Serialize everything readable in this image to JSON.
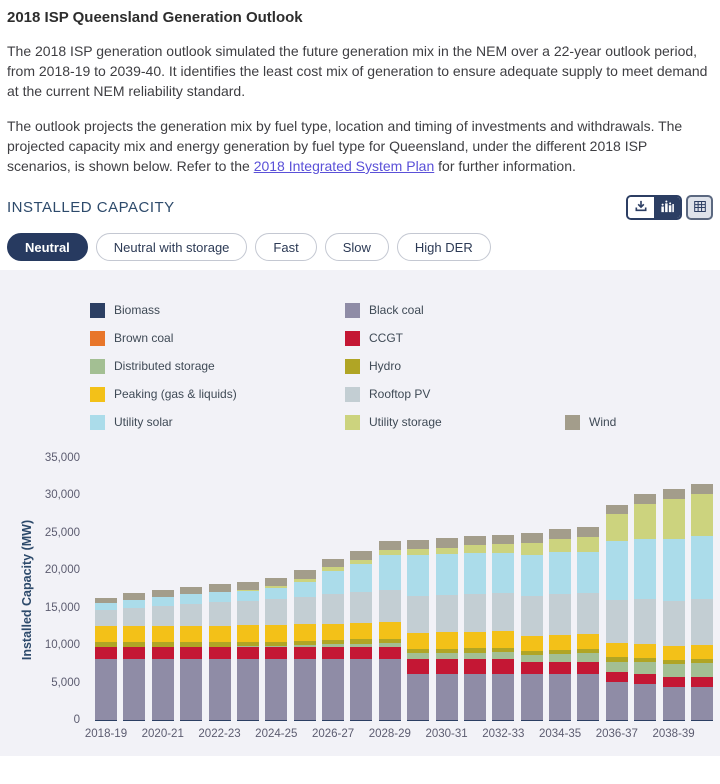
{
  "page": {
    "title": "2018 ISP Queensland Generation Outlook",
    "paragraph1": "The 2018 ISP generation outlook simulated the future generation mix in the NEM over a 22-year outlook period, from 2018-19 to 2039-40. It identifies the least cost mix of generation to ensure adequate supply to meet demand at the current NEM reliability standard.",
    "paragraph2_before_link": "The outlook projects the generation mix by fuel type, location and timing of investments and withdrawals. The projected capacity mix and energy generation by fuel type for Queensland, under the different 2018 ISP scenarios, is shown below. Refer to the ",
    "link_text": "2018 Integrated System Plan",
    "paragraph2_after_link": " for further information."
  },
  "section": {
    "header": "INSTALLED CAPACITY"
  },
  "toolbar": [
    {
      "name": "download",
      "icon": "download-icon",
      "selected": false
    },
    {
      "name": "chart-view",
      "icon": "bar-chart-icon",
      "selected": true
    },
    {
      "name": "table-view",
      "icon": "table-icon",
      "selected": false
    }
  ],
  "tabs": [
    {
      "label": "Neutral",
      "selected": true
    },
    {
      "label": "Neutral with storage",
      "selected": false
    },
    {
      "label": "Fast",
      "selected": false
    },
    {
      "label": "Slow",
      "selected": false
    },
    {
      "label": "High DER",
      "selected": false
    }
  ],
  "colors": {
    "accent_navy": "#273a60",
    "panel_background": "#f2f2f7",
    "link": "#5a50d8",
    "axis_text": "#5c5c70",
    "legend_text": "#3f4a56"
  },
  "chart_data": {
    "type": "bar",
    "stacked": true,
    "title": "",
    "xlabel": "",
    "ylabel": "Installed Capacity (MW)",
    "ylim": [
      0,
      35000
    ],
    "grid": false,
    "legend_position": "top",
    "yticks": [
      {
        "value": 0,
        "label": "0"
      },
      {
        "value": 5000,
        "label": "5,000"
      },
      {
        "value": 10000,
        "label": "10,000"
      },
      {
        "value": 15000,
        "label": "15,000"
      },
      {
        "value": 20000,
        "label": "20,000"
      },
      {
        "value": 25000,
        "label": "25,000"
      },
      {
        "value": 30000,
        "label": "30,000"
      },
      {
        "value": 35000,
        "label": "35,000"
      }
    ],
    "categories": [
      "2018-19",
      "2019-20",
      "2020-21",
      "2021-22",
      "2022-23",
      "2023-24",
      "2024-25",
      "2025-26",
      "2026-27",
      "2027-28",
      "2028-29",
      "2029-30",
      "2030-31",
      "2031-32",
      "2032-33",
      "2033-34",
      "2034-35",
      "2035-36",
      "2036-37",
      "2037-38",
      "2038-39",
      "2039-40"
    ],
    "x_tick_labels_shown": [
      "2018-19",
      "2020-21",
      "2022-23",
      "2024-25",
      "2026-27",
      "2028-29",
      "2030-31",
      "2032-33",
      "2034-35",
      "2036-37",
      "2038-39"
    ],
    "series": [
      {
        "name": "Biomass",
        "color": "#2c3f63",
        "values": [
          150,
          150,
          150,
          150,
          150,
          150,
          150,
          150,
          150,
          150,
          150,
          150,
          150,
          150,
          150,
          150,
          150,
          150,
          150,
          150,
          150,
          150
        ]
      },
      {
        "name": "Black coal",
        "color": "#8f8ca6",
        "values": [
          8200,
          8200,
          8200,
          8200,
          8200,
          8200,
          8200,
          8200,
          8200,
          8200,
          8200,
          6100,
          6100,
          6100,
          6100,
          6100,
          6100,
          6100,
          5000,
          4800,
          4400,
          4400
        ]
      },
      {
        "name": "Brown coal",
        "color": "#e8762a",
        "values": [
          0,
          0,
          0,
          0,
          0,
          0,
          0,
          0,
          0,
          0,
          0,
          0,
          0,
          0,
          0,
          0,
          0,
          0,
          0,
          0,
          0,
          0
        ]
      },
      {
        "name": "CCGT",
        "color": "#c41734",
        "values": [
          1600,
          1600,
          1600,
          1600,
          1600,
          1600,
          1600,
          1600,
          1600,
          1600,
          1600,
          2000,
          2000,
          2000,
          2000,
          1600,
          1600,
          1600,
          1400,
          1400,
          1400,
          1400
        ]
      },
      {
        "name": "Distributed storage",
        "color": "#a3bf93",
        "values": [
          0,
          0,
          0,
          0,
          0,
          50,
          100,
          200,
          300,
          400,
          500,
          800,
          850,
          900,
          950,
          1000,
          1100,
          1200,
          1400,
          1550,
          1700,
          1800
        ]
      },
      {
        "name": "Hydro",
        "color": "#b0a525",
        "values": [
          570,
          570,
          570,
          570,
          570,
          570,
          570,
          570,
          570,
          570,
          570,
          570,
          570,
          570,
          570,
          570,
          570,
          570,
          570,
          570,
          570,
          570
        ]
      },
      {
        "name": "Peaking (gas & liquids)",
        "color": "#f3c118",
        "values": [
          2200,
          2200,
          2200,
          2200,
          2200,
          2200,
          2200,
          2200,
          2200,
          2200,
          2200,
          2200,
          2200,
          2200,
          2200,
          2000,
          2000,
          2000,
          1900,
          1850,
          1800,
          1800
        ]
      },
      {
        "name": "Rooftop PV",
        "color": "#c3ced3",
        "values": [
          2100,
          2400,
          2700,
          2950,
          3200,
          3300,
          3500,
          3700,
          3900,
          4100,
          4300,
          4900,
          5000,
          5100,
          5150,
          5300,
          5450,
          5550,
          5800,
          5950,
          6050,
          6200
        ]
      },
      {
        "name": "Utility solar",
        "color": "#abdcea",
        "values": [
          900,
          1050,
          1150,
          1250,
          1300,
          1350,
          1500,
          2000,
          3100,
          3700,
          4600,
          5400,
          5400,
          5450,
          5300,
          5500,
          5550,
          5400,
          7800,
          8050,
          8300,
          8350
        ]
      },
      {
        "name": "Utility storage",
        "color": "#ccd37e",
        "values": [
          0,
          0,
          0,
          0,
          50,
          100,
          200,
          350,
          500,
          600,
          700,
          800,
          900,
          1000,
          1200,
          1600,
          1800,
          2000,
          3600,
          4700,
          5300,
          5700
        ]
      },
      {
        "name": "Wind",
        "color": "#a39d8b",
        "values": [
          700,
          900,
          1000,
          1000,
          1050,
          1100,
          1150,
          1200,
          1200,
          1250,
          1250,
          1250,
          1250,
          1250,
          1250,
          1250,
          1300,
          1300,
          1300,
          1300,
          1300,
          1300
        ]
      }
    ]
  }
}
